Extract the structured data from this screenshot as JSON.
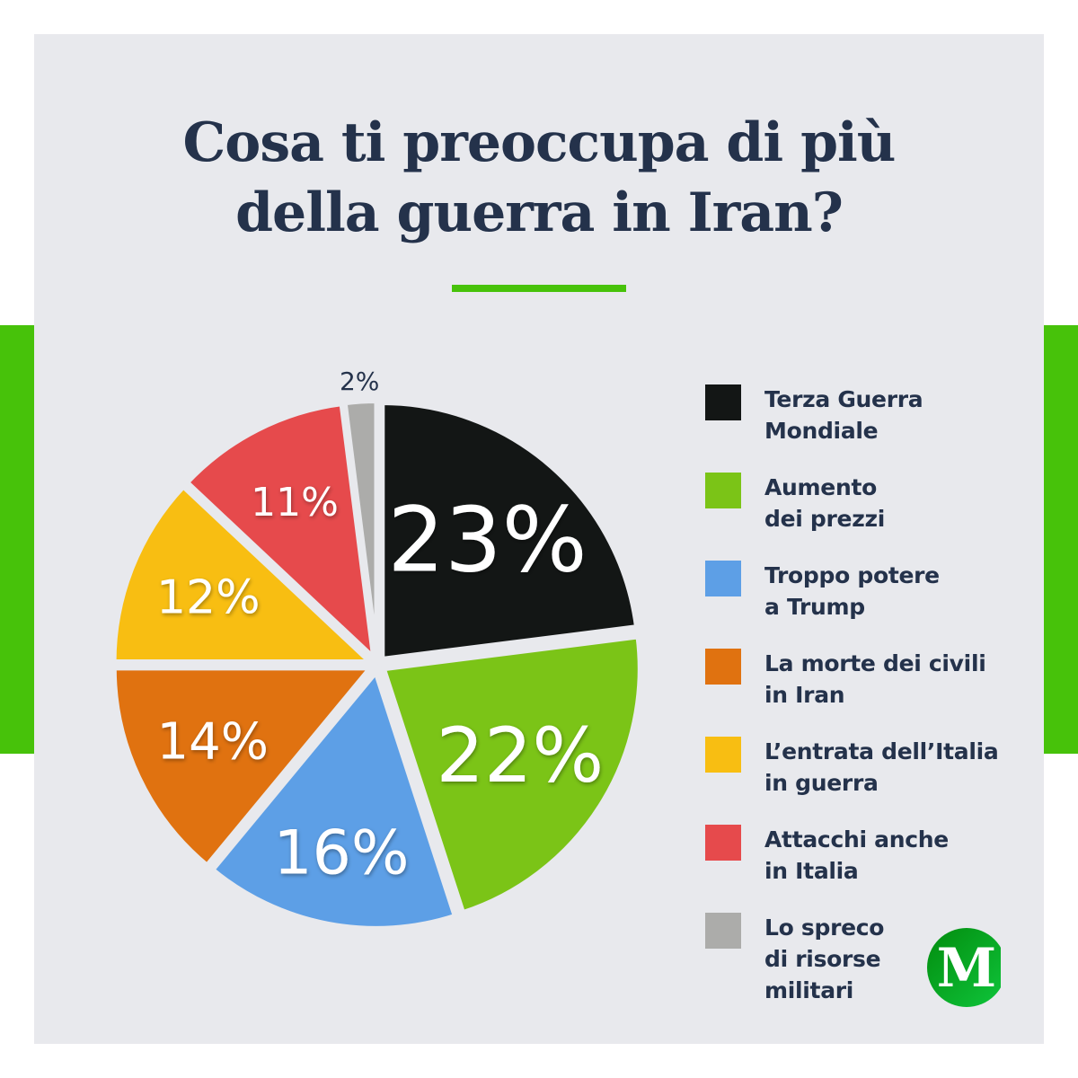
{
  "title": {
    "line1": "Cosa ti preoccupa di più",
    "line2": "della guerra in Iran?"
  },
  "colors": {
    "background_panel": "#e8e9ed",
    "accent_green": "#47c20a",
    "text_dark": "#24324b"
  },
  "legend": {
    "items": [
      {
        "line1": "Terza Guerra",
        "line2": "Mondiale",
        "line3": "",
        "color": "#131615"
      },
      {
        "line1": "Aumento",
        "line2": "dei prezzi",
        "line3": "",
        "color": "#7bc417"
      },
      {
        "line1": "Troppo potere",
        "line2": "a Trump",
        "line3": "",
        "color": "#5d9fe6"
      },
      {
        "line1": "La morte dei civili",
        "line2": "in Iran",
        "line3": "",
        "color": "#e07210"
      },
      {
        "line1": "L’entrata dell’Italia",
        "line2": "in guerra",
        "line3": "",
        "color": "#f8be12"
      },
      {
        "line1": "Attacchi anche",
        "line2": "in Italia",
        "line3": "",
        "color": "#e64a4c"
      },
      {
        "line1": "Lo spreco",
        "line2": "di risorse",
        "line3": "militari",
        "color": "#acacaa"
      }
    ]
  },
  "logo": {
    "letter": "M"
  },
  "chart_data": {
    "type": "pie",
    "title": "Cosa ti preoccupa di più della guerra in Iran?",
    "categories": [
      "Terza Guerra Mondiale",
      "Aumento dei prezzi",
      "Troppo potere a Trump",
      "La morte dei civili in Iran",
      "L’entrata dell’Italia in guerra",
      "Attacchi anche in Italia",
      "Lo spreco di risorse militari"
    ],
    "values": [
      23,
      22,
      16,
      14,
      12,
      11,
      2
    ],
    "labels": [
      "23%",
      "22%",
      "16%",
      "14%",
      "12%",
      "11%",
      "2%"
    ],
    "colors": [
      "#131615",
      "#7bc417",
      "#5d9fe6",
      "#e07210",
      "#f8be12",
      "#e64a4c",
      "#acacaa"
    ],
    "label_sizes": [
      100,
      84,
      68,
      56,
      52,
      44,
      28
    ],
    "unit": "%",
    "start_angle": "12 o'clock, clockwise",
    "exploded": true,
    "legend_position": "right"
  }
}
